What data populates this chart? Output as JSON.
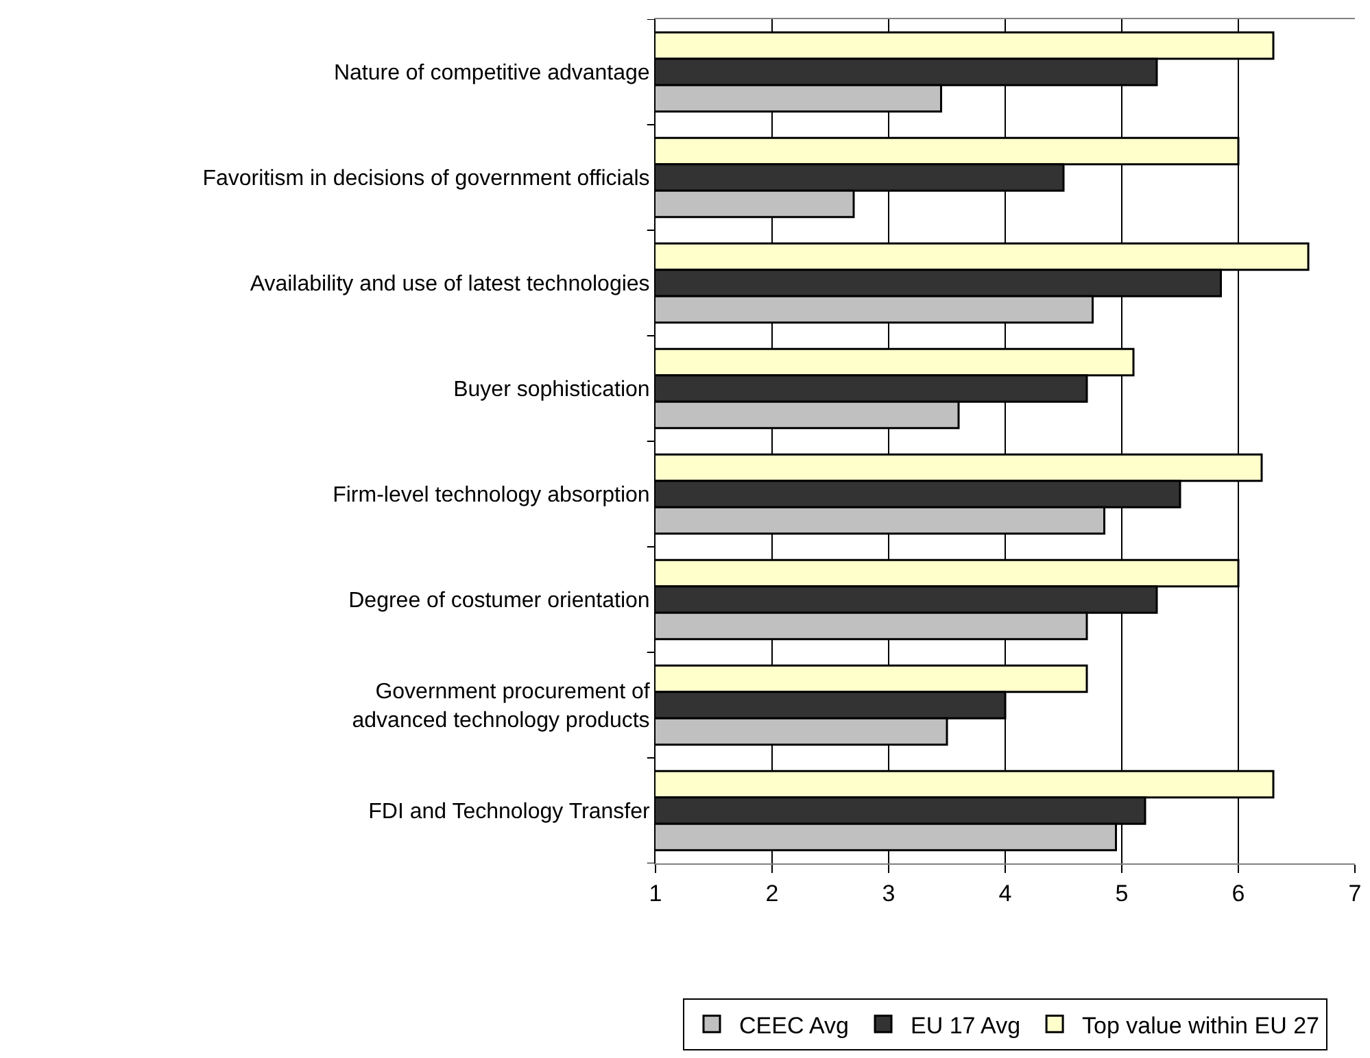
{
  "chart_data": {
    "type": "bar",
    "orientation": "horizontal",
    "categories": [
      "Nature of competitive advantage",
      "Favoritism in decisions of government officials",
      "Availability and use of latest technologies",
      "Buyer sophistication",
      "Firm-level technology absorption",
      "Degree of costumer orientation",
      "Government procurement of\nadvanced technology products",
      "FDI and Technology Transfer"
    ],
    "series": [
      {
        "name": "CEEC Avg",
        "color": "#c0c0c0",
        "values": [
          3.45,
          2.7,
          4.75,
          3.6,
          4.85,
          4.7,
          3.5,
          4.95
        ]
      },
      {
        "name": "EU 17 Avg",
        "color": "#333333",
        "values": [
          5.3,
          4.5,
          5.85,
          4.7,
          5.5,
          5.3,
          4.0,
          5.2
        ]
      },
      {
        "name": "Top value within EU 27",
        "color": "#ffffcc",
        "values": [
          6.3,
          6.0,
          6.6,
          5.1,
          6.2,
          6.0,
          4.7,
          6.3
        ]
      }
    ],
    "xlim": [
      1,
      7
    ],
    "xticks": [
      1,
      2,
      3,
      4,
      5,
      6,
      7
    ],
    "grid": "x",
    "legend": "bottom"
  }
}
